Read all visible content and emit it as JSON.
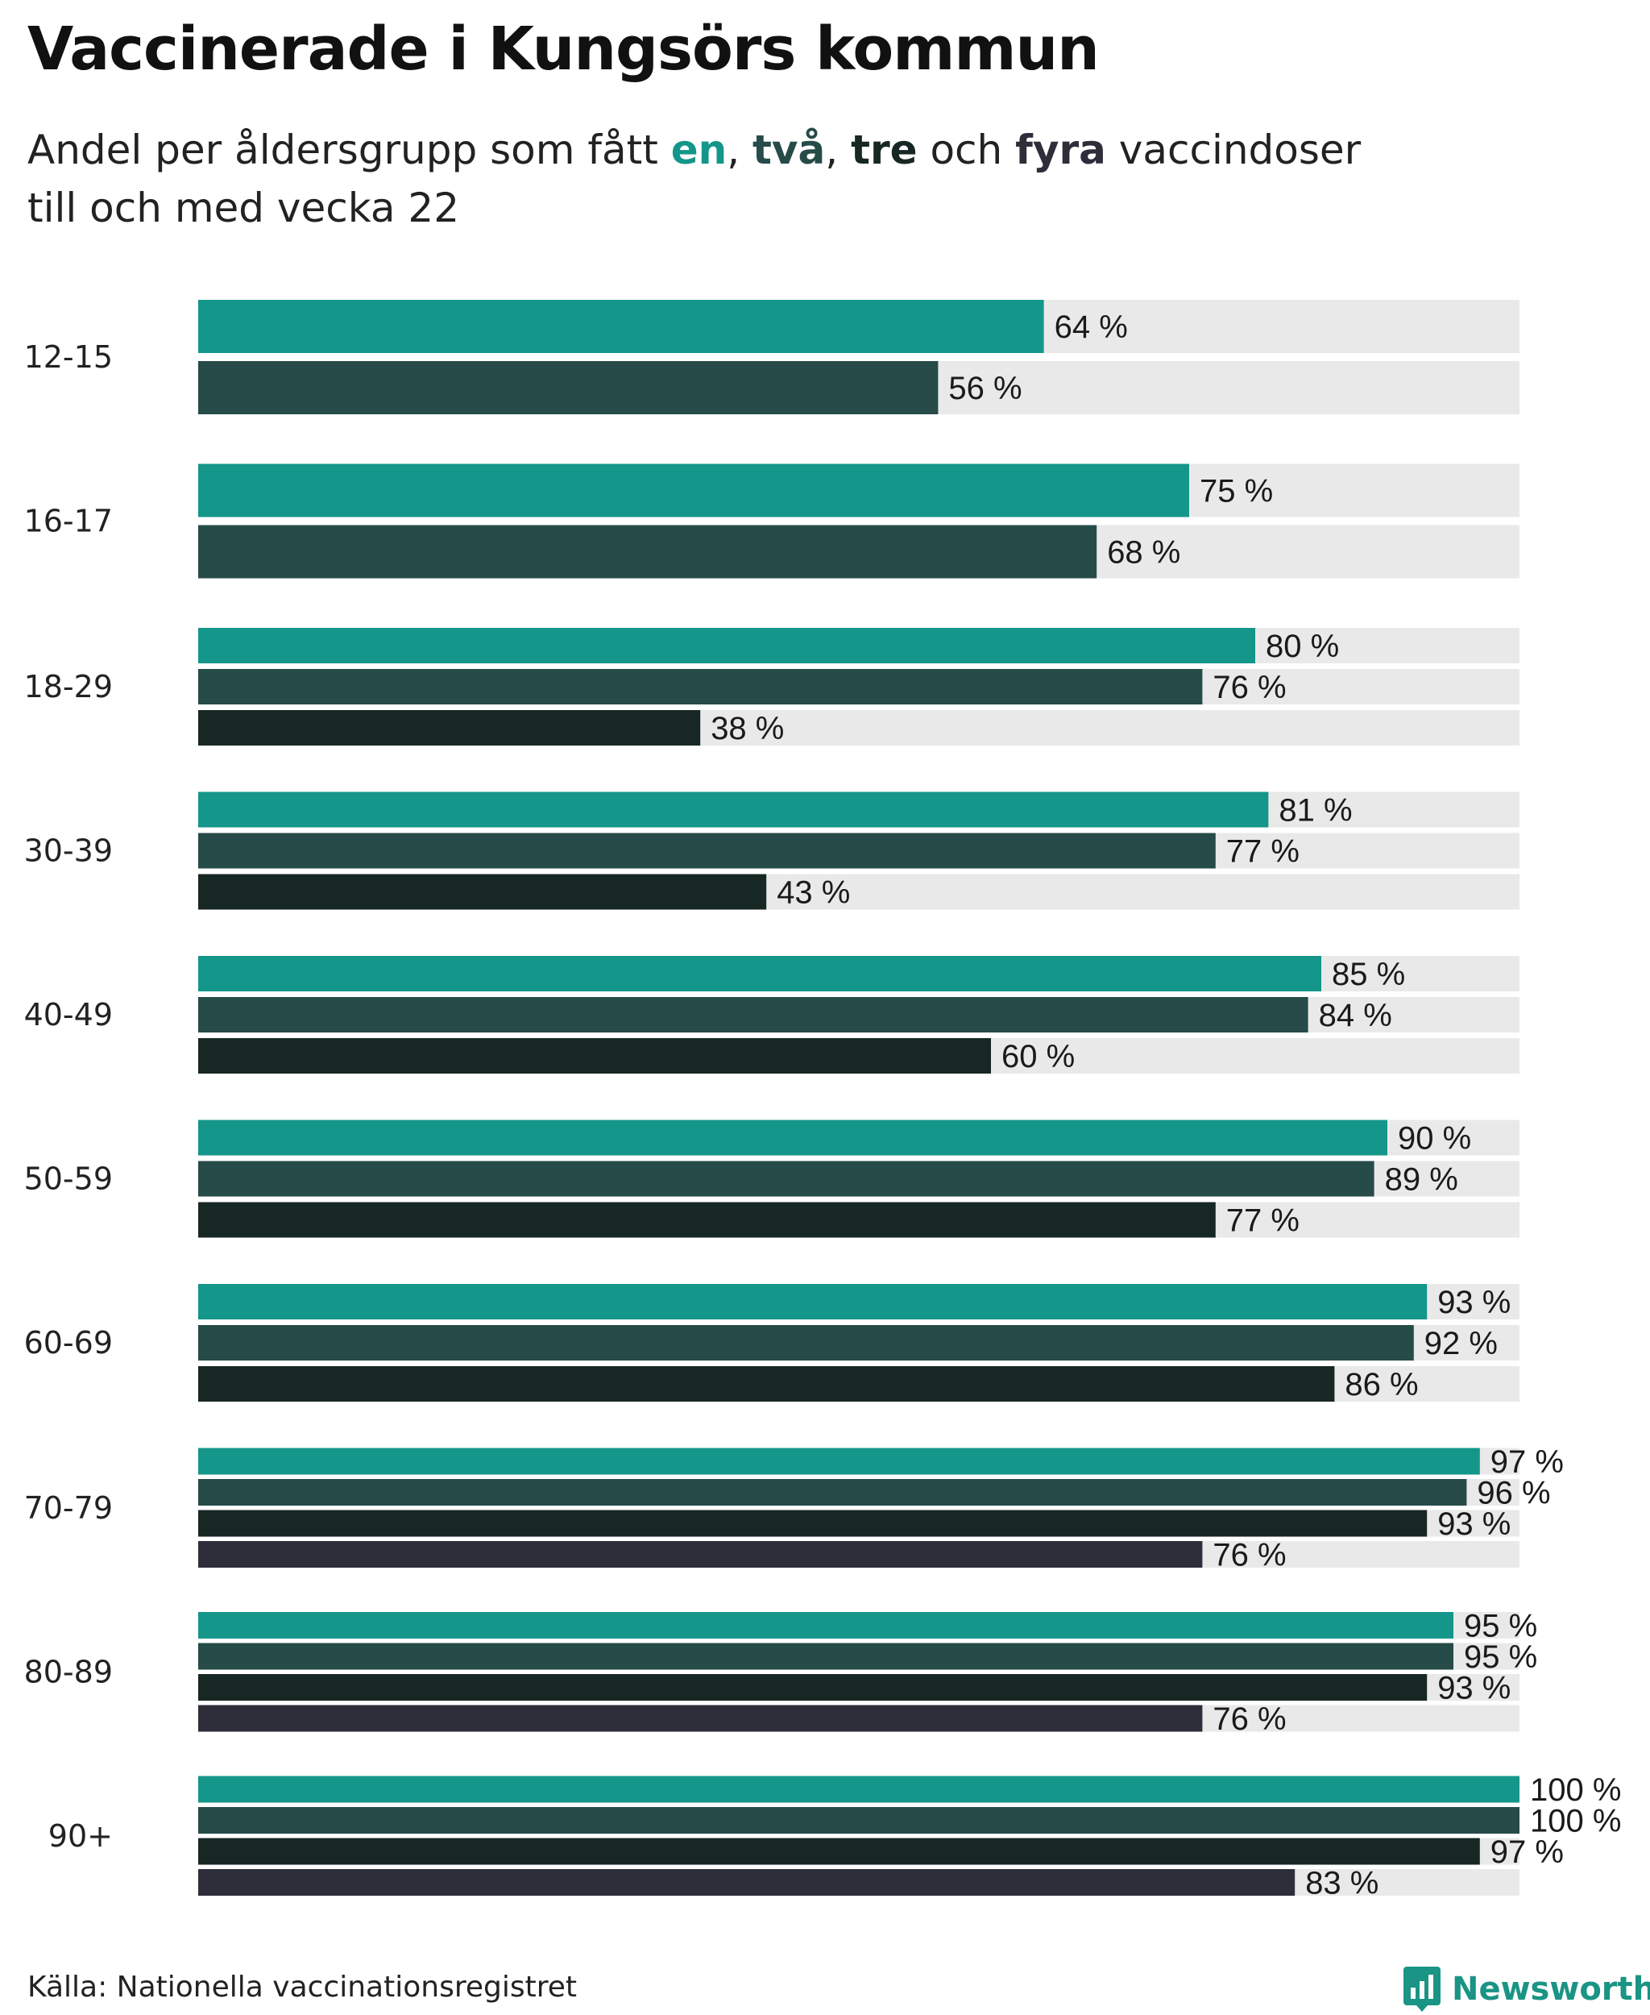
{
  "title": "Vaccinerade i Kungsörs kommun",
  "subtitle": {
    "part1": "Andel per åldersgrupp som fått ",
    "dose1": "en",
    "sep1": ", ",
    "dose2": "två",
    "sep2": ", ",
    "dose3": "tre",
    "part2": " och ",
    "dose4": "fyra",
    "part3": " vaccindoser",
    "line2": "till och med vecka 22"
  },
  "source": "Källa: Nationella vaccinationsregistret",
  "brand": {
    "name": "Newsworthy",
    "icon": "newsworthy-logo-icon"
  },
  "colors": {
    "dose1": "#14968a",
    "dose2": "#264b48",
    "dose3": "#172724",
    "dose4": "#2e2d3a",
    "track": "#e9e9e9",
    "brand": "#1a9484"
  },
  "chart_data": {
    "type": "bar",
    "orientation": "horizontal",
    "categories": [
      "12-15",
      "16-17",
      "18-29",
      "30-39",
      "40-49",
      "50-59",
      "60-69",
      "70-79",
      "80-89",
      "90+"
    ],
    "xlim": [
      0,
      100
    ],
    "unit": "%",
    "series": [
      {
        "name": "en",
        "values": [
          64,
          75,
          80,
          81,
          85,
          90,
          93,
          97,
          95,
          100
        ]
      },
      {
        "name": "två",
        "values": [
          56,
          68,
          76,
          77,
          84,
          89,
          92,
          96,
          95,
          100
        ]
      },
      {
        "name": "tre",
        "values": [
          null,
          null,
          38,
          43,
          60,
          77,
          86,
          93,
          93,
          97
        ]
      },
      {
        "name": "fyra",
        "values": [
          null,
          null,
          null,
          null,
          null,
          null,
          null,
          76,
          76,
          83
        ]
      }
    ],
    "data_labels": [
      [
        "64 %",
        "56 %"
      ],
      [
        "75 %",
        "68 %"
      ],
      [
        "80 %",
        "76 %",
        "38 %"
      ],
      [
        "81 %",
        "77 %",
        "43 %"
      ],
      [
        "85 %",
        "84 %",
        "60 %"
      ],
      [
        "90 %",
        "89 %",
        "77 %"
      ],
      [
        "93 %",
        "92 %",
        "86 %"
      ],
      [
        "97 %",
        "96 %",
        "93 %",
        "76 %"
      ],
      [
        "95 %",
        "95 %",
        "93 %",
        "76 %"
      ],
      [
        "100 %",
        "100 %",
        "97 %",
        "83 %"
      ]
    ],
    "grid": false,
    "legend": "none"
  }
}
